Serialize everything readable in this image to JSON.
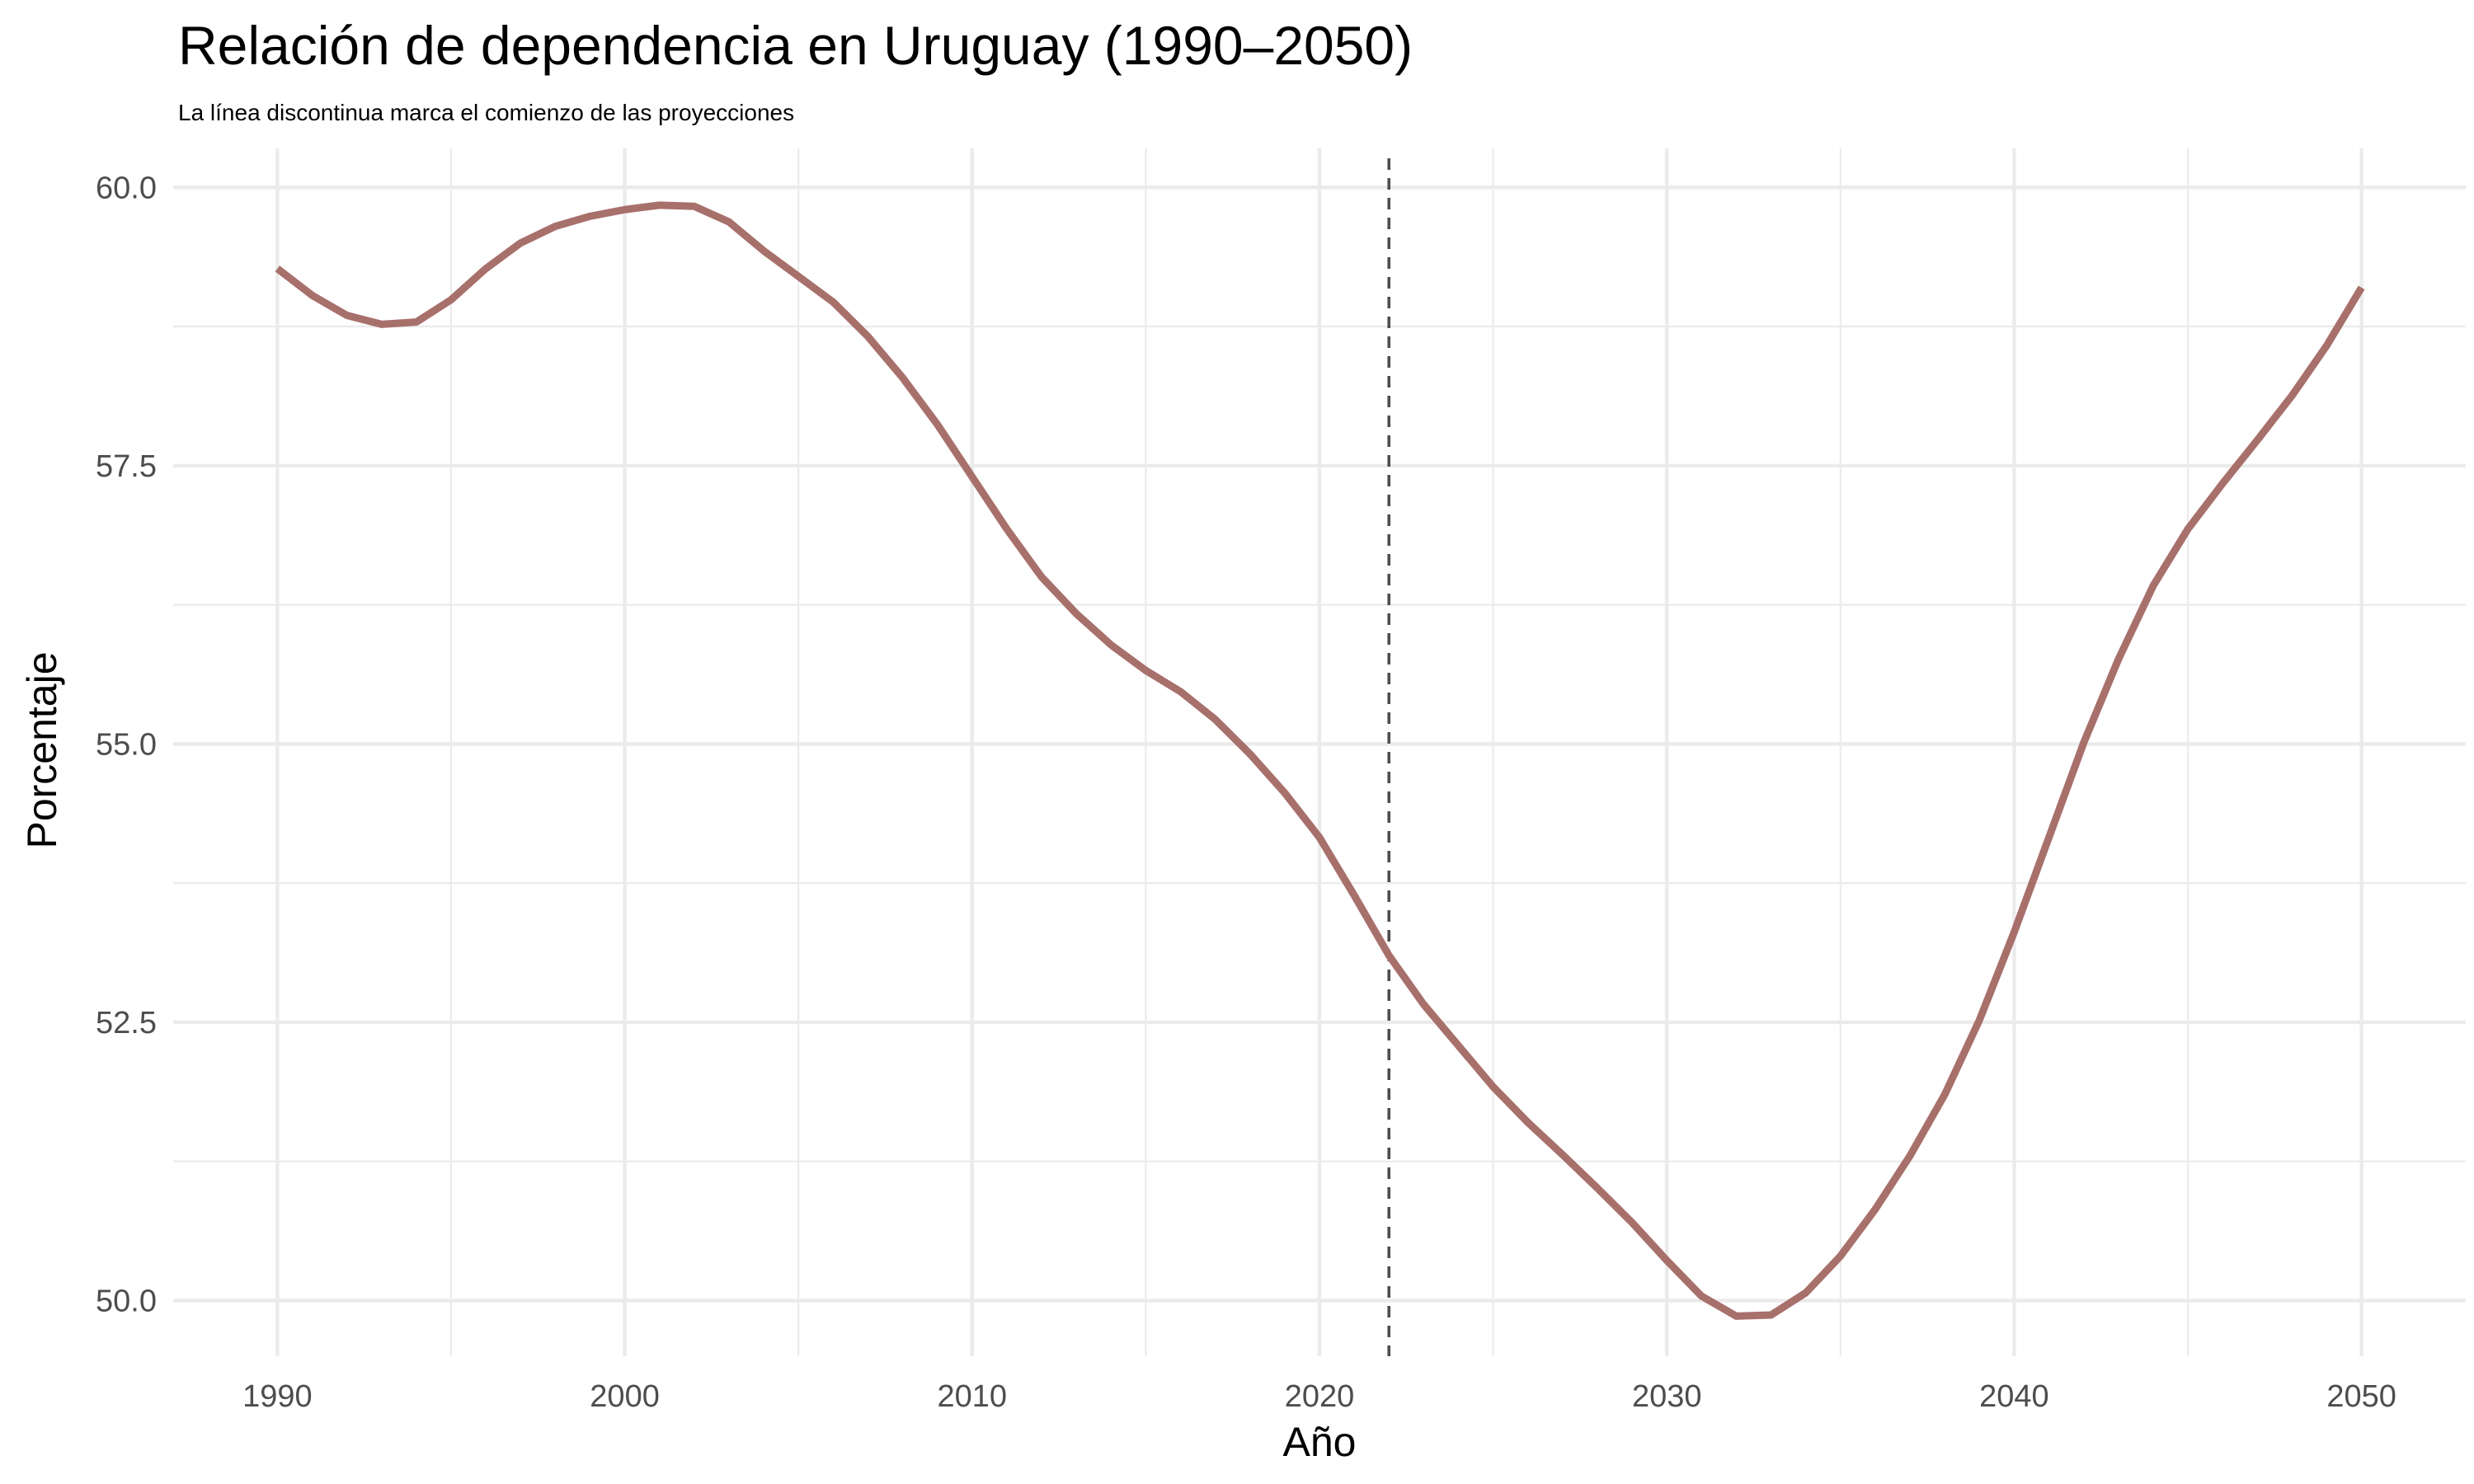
{
  "chart_data": {
    "type": "line",
    "title": "Relación de dependencia en Uruguay (1990–2050)",
    "subtitle": "La línea discontinua marca el comienzo de las proyecciones",
    "xlabel": "Año",
    "ylabel": "Porcentaje",
    "xlim": [
      1987,
      2053
    ],
    "ylim": [
      49.5,
      60.35
    ],
    "x_ticks": [
      1990,
      2000,
      2010,
      2020,
      2030,
      2040,
      2050
    ],
    "x_minor_ticks": [
      1995,
      2005,
      2015,
      2025,
      2035,
      2045
    ],
    "y_ticks": [
      50.0,
      52.5,
      55.0,
      57.5,
      60.0
    ],
    "y_tick_labels": [
      "50.0",
      "52.5",
      "55.0",
      "57.5",
      "60.0"
    ],
    "y_minor_ticks": [
      51.25,
      53.75,
      56.25,
      58.75
    ],
    "x_tick_labels": [
      "1990",
      "2000",
      "2010",
      "2020",
      "2030",
      "2040",
      "2050"
    ],
    "projection_start": 2022,
    "grid": true,
    "legend": "none",
    "colors": {
      "line": "#a8706b",
      "vline": "#4d4d4d",
      "grid": "#ebebeb",
      "tick_text": "#4d4d4d"
    },
    "series": [
      {
        "x": [
          1990,
          1991,
          1992,
          1993,
          1994,
          1995,
          1996,
          1997,
          1998,
          1999,
          2000,
          2001,
          2002,
          2003,
          2004,
          2005,
          2006,
          2007,
          2008,
          2009,
          2010,
          2011,
          2012,
          2013,
          2014,
          2015,
          2016,
          2017,
          2018,
          2019,
          2020,
          2021,
          2022,
          2023,
          2024,
          2025,
          2026,
          2027,
          2028,
          2029,
          2030,
          2031,
          2032,
          2033,
          2034,
          2035,
          2036,
          2037,
          2038,
          2039,
          2040,
          2041,
          2042,
          2043,
          2044,
          2045,
          2046,
          2047,
          2048,
          2049,
          2050
        ],
        "values": [
          59.27,
          59.03,
          58.85,
          58.77,
          58.79,
          58.99,
          59.27,
          59.5,
          59.65,
          59.74,
          59.8,
          59.84,
          59.83,
          59.69,
          59.43,
          59.2,
          58.97,
          58.66,
          58.29,
          57.87,
          57.4,
          56.93,
          56.5,
          56.17,
          55.89,
          55.66,
          55.47,
          55.22,
          54.91,
          54.56,
          54.16,
          53.64,
          53.1,
          52.66,
          52.29,
          51.92,
          51.6,
          51.31,
          51.01,
          50.7,
          50.36,
          50.04,
          49.86,
          49.87,
          50.07,
          50.4,
          50.82,
          51.3,
          51.85,
          52.52,
          53.31,
          54.16,
          55.01,
          55.76,
          56.42,
          56.93,
          57.34,
          57.73,
          58.13,
          58.58,
          59.1
        ]
      }
    ]
  }
}
